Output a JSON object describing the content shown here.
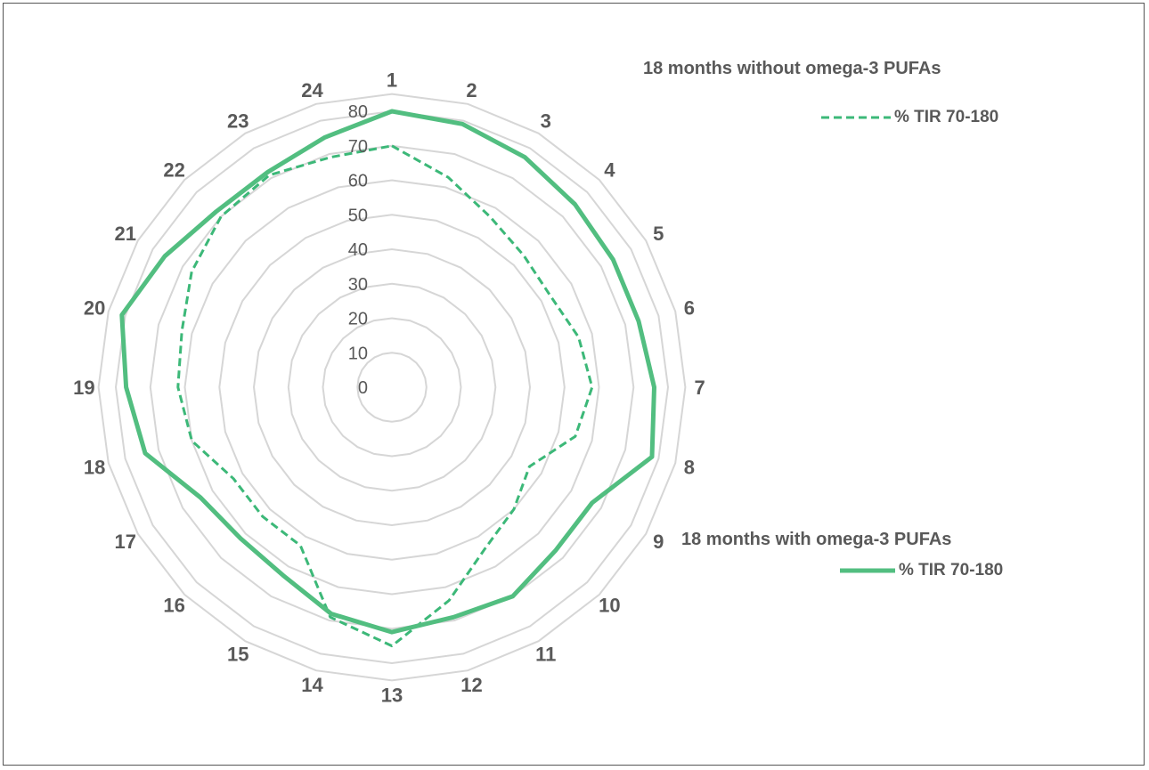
{
  "chart_data": {
    "type": "radar",
    "categories": [
      "1",
      "2",
      "3",
      "4",
      "5",
      "6",
      "7",
      "8",
      "9",
      "10",
      "11",
      "12",
      "13",
      "14",
      "15",
      "16",
      "17",
      "18",
      "19",
      "20",
      "21",
      "22",
      "23",
      "24"
    ],
    "radial_ticks": [
      "0",
      "10",
      "20",
      "30",
      "40",
      "50",
      "60",
      "70",
      "80"
    ],
    "rmax": 80,
    "grid": true,
    "series": [
      {
        "group": "18 months without omega-3 PUFAs",
        "name": "% TIR 70-180",
        "style": "dashed",
        "color": "#3cb878",
        "values": [
          70,
          63,
          57,
          54,
          53,
          56,
          58,
          55,
          46,
          50,
          54,
          64,
          75,
          69,
          53,
          53,
          53,
          60,
          62,
          63,
          67,
          70,
          71,
          69
        ]
      },
      {
        "group": "18 months with omega-3 PUFAs",
        "name": "% TIR 70-180",
        "style": "solid",
        "color": "#52be80",
        "values": [
          80,
          79,
          77,
          75,
          74,
          74,
          76,
          78,
          67,
          67,
          70,
          69,
          71,
          68,
          63,
          62,
          64,
          74,
          77,
          81,
          76,
          72,
          72,
          75
        ]
      }
    ],
    "legend_position": "right"
  },
  "legend": {
    "without_title": "18 months without omega-3 PUFAs",
    "without_label": "% TIR 70-180",
    "with_title": "18 months with omega-3 PUFAs",
    "with_label": "% TIR 70-180"
  }
}
